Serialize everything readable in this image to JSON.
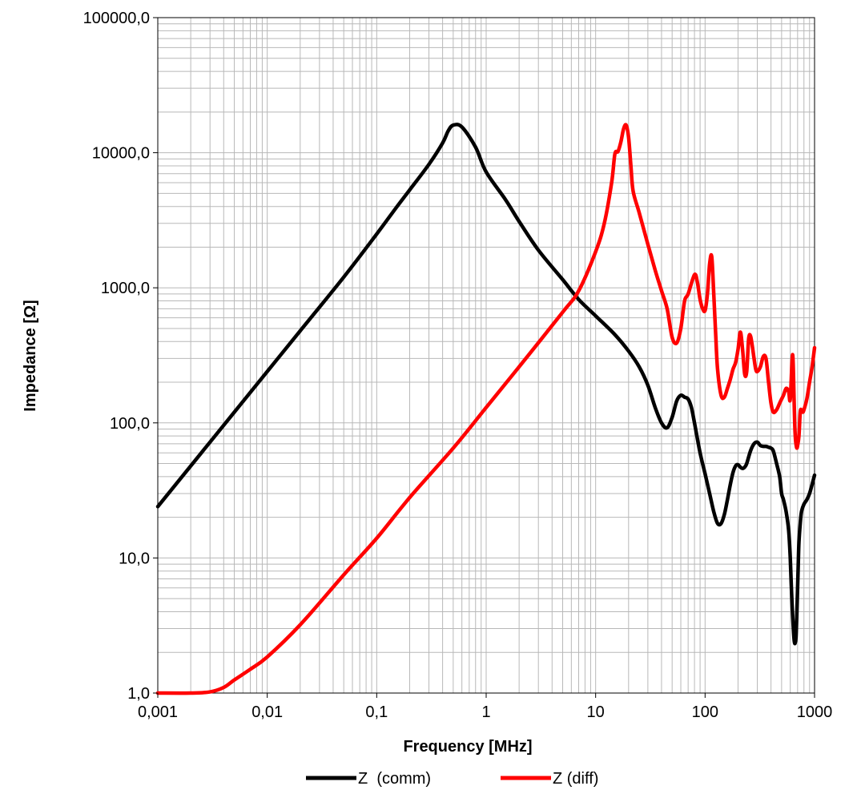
{
  "chart_data": {
    "type": "line",
    "xscale": "log",
    "yscale": "log",
    "xlabel": "Frequency  [MHz]",
    "ylabel": "Impedance [Ω]",
    "xlim": [
      0.001,
      1000
    ],
    "ylim": [
      1,
      100000
    ],
    "grid": true,
    "legend_position": "bottom",
    "x_tick_labels": [
      "0,001",
      "0,01",
      "0,1",
      "1",
      "10",
      "100",
      "1000"
    ],
    "y_tick_labels": [
      "1,0",
      "10,0",
      "100,0",
      "1000,0",
      "10000,0",
      "100000,0"
    ],
    "series": [
      {
        "name": "Z  (comm)",
        "color": "#000000",
        "x": [
          0.001,
          0.002,
          0.005,
          0.01,
          0.02,
          0.05,
          0.1,
          0.15,
          0.2,
          0.3,
          0.4,
          0.45,
          0.5,
          0.6,
          0.8,
          1,
          1.5,
          2,
          3,
          5,
          7,
          10,
          15,
          20,
          25,
          30,
          35,
          40,
          45,
          50,
          55,
          60,
          65,
          70,
          75,
          80,
          90,
          100,
          110,
          120,
          130,
          140,
          150,
          160,
          170,
          180,
          190,
          200,
          210,
          220,
          230,
          240,
          260,
          280,
          300,
          320,
          340,
          360,
          380,
          400,
          420,
          450,
          480,
          500,
          520,
          550,
          580,
          600,
          620,
          650,
          670,
          680,
          690,
          700,
          710,
          720,
          740,
          760,
          800,
          850,
          900,
          950,
          1000
        ],
        "y": [
          24,
          48,
          120,
          240,
          480,
          1200,
          2500,
          3900,
          5300,
          8200,
          11800,
          14500,
          16000,
          15500,
          11000,
          7200,
          4500,
          3100,
          1900,
          1150,
          820,
          620,
          450,
          340,
          260,
          190,
          130,
          100,
          92,
          110,
          145,
          160,
          155,
          150,
          130,
          100,
          60,
          42,
          30,
          22,
          18,
          18,
          21,
          27,
          35,
          43,
          48,
          49,
          47,
          46,
          47,
          50,
          62,
          70,
          72,
          68,
          67,
          67,
          66,
          65,
          62,
          50,
          40,
          30,
          27,
          22,
          16,
          10,
          5,
          2.5,
          2.4,
          2.8,
          4,
          6,
          9,
          13,
          18,
          22,
          25,
          27,
          30,
          35,
          41
        ]
      },
      {
        "name": "Z (diff)",
        "color": "#ff0000",
        "x": [
          0.001,
          0.002,
          0.003,
          0.004,
          0.005,
          0.007,
          0.01,
          0.02,
          0.05,
          0.1,
          0.2,
          0.5,
          1,
          2,
          5,
          7,
          10,
          12,
          14,
          15,
          16,
          17,
          18,
          19,
          20,
          21,
          22,
          25,
          30,
          35,
          40,
          45,
          50,
          55,
          60,
          65,
          70,
          80,
          85,
          90,
          95,
          100,
          105,
          110,
          115,
          120,
          125,
          130,
          140,
          150,
          160,
          170,
          180,
          190,
          200,
          210,
          220,
          230,
          240,
          250,
          260,
          270,
          280,
          290,
          300,
          320,
          340,
          360,
          380,
          400,
          420,
          450,
          480,
          500,
          520,
          550,
          580,
          600,
          630,
          650,
          660,
          670,
          680,
          690,
          700,
          720,
          740,
          760,
          780,
          800,
          850,
          900,
          950,
          1000
        ],
        "y": [
          1,
          1,
          1.02,
          1.1,
          1.25,
          1.5,
          1.85,
          3.2,
          7.5,
          14,
          28,
          65,
          130,
          260,
          660,
          950,
          1850,
          3000,
          6000,
          9800,
          10200,
          12000,
          15000,
          16000,
          13000,
          8000,
          5200,
          3600,
          2100,
          1350,
          950,
          700,
          430,
          390,
          500,
          800,
          900,
          1250,
          1100,
          820,
          700,
          680,
          900,
          1500,
          1700,
          900,
          450,
          250,
          160,
          155,
          180,
          210,
          250,
          280,
          350,
          470,
          350,
          230,
          240,
          420,
          440,
          370,
          300,
          250,
          240,
          260,
          310,
          300,
          200,
          140,
          120,
          125,
          140,
          150,
          160,
          180,
          170,
          150,
          320,
          150,
          95,
          75,
          68,
          65,
          68,
          80,
          120,
          125,
          120,
          125,
          150,
          200,
          260,
          360
        ]
      }
    ]
  }
}
